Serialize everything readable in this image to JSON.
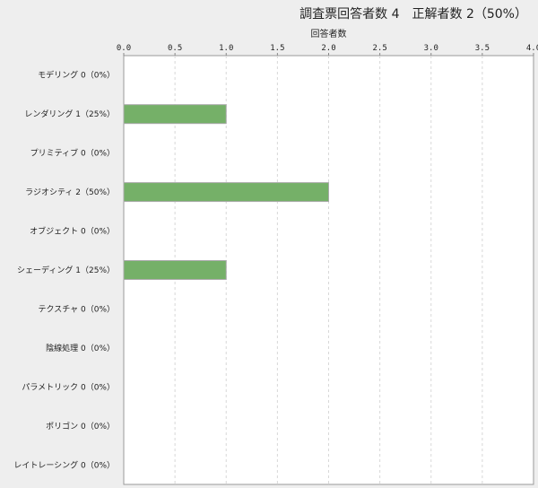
{
  "title": "調査票回答者数 4　正解者数 2（50%）",
  "chart_data": {
    "type": "bar",
    "orientation": "horizontal",
    "xlabel": "回答者数",
    "xlim": [
      0,
      4
    ],
    "x_ticks": [
      "0.0",
      "0.5",
      "1.0",
      "1.5",
      "2.0",
      "2.5",
      "3.0",
      "3.5",
      "4.0"
    ],
    "grid": true,
    "bar_color": "#75b068",
    "categories": [
      "モデリング 0（0%）",
      "レンダリング 1（25%）",
      "プリミティブ 0（0%）",
      "ラジオシティ 2（50%）",
      "オブジェクト 0（0%）",
      "シェーディング 1（25%）",
      "テクスチャ 0（0%）",
      "陰線処理 0（0%）",
      "パラメトリック 0（0%）",
      "ポリゴン 0（0%）",
      "レイトレーシング 0（0%）"
    ],
    "values": [
      0,
      1,
      0,
      2,
      0,
      1,
      0,
      0,
      0,
      0,
      0
    ]
  }
}
